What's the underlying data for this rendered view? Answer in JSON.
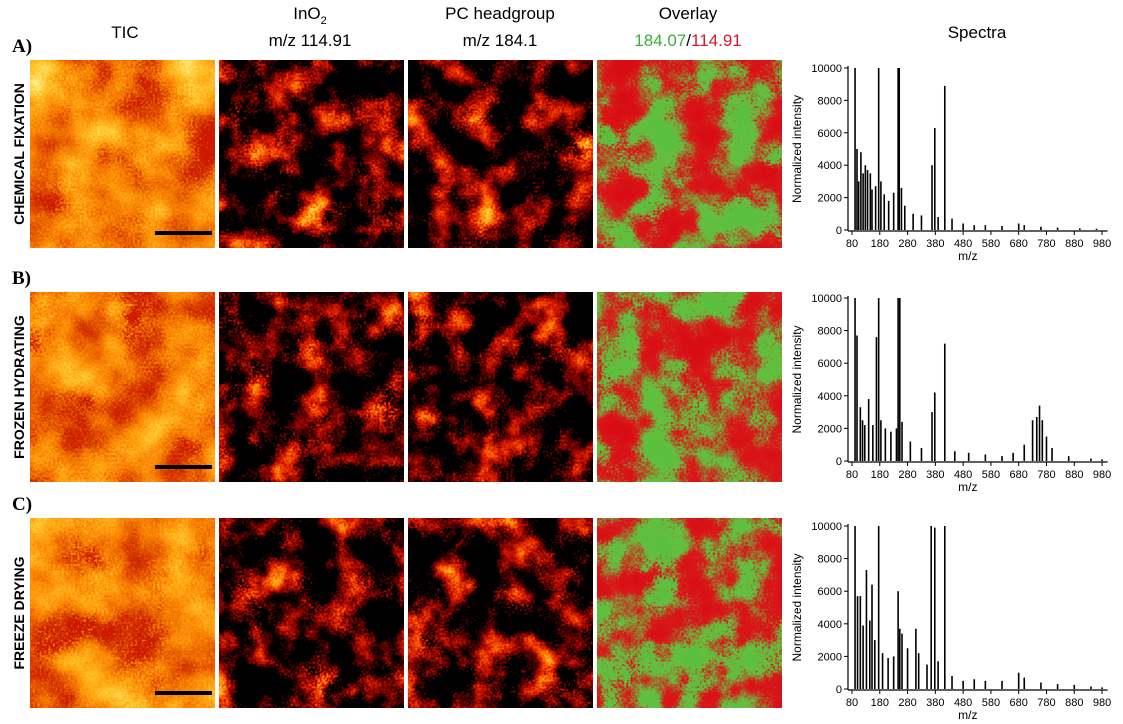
{
  "headers": {
    "tic": "TIC",
    "ino2": "InO",
    "ino2_sub": "2",
    "ino2_mz": "m/z 114.91",
    "pc": "PC headgroup",
    "pc_mz": "m/z 184.1",
    "overlay": "Overlay",
    "overlay_green": "184.07",
    "overlay_sep": "/",
    "overlay_red": "114.91",
    "spectra": "Spectra"
  },
  "rows": [
    {
      "letter": "A)",
      "label": "CHEMICAL FIXATION"
    },
    {
      "letter": "B)",
      "label": "FROZEN HYDRATING"
    },
    {
      "letter": "C)",
      "label": "FREEZE DRYING"
    }
  ],
  "chart_data": [
    {
      "type": "bar",
      "xlabel": "m/z",
      "ylabel": "Normalized intensity",
      "color": "#000000",
      "x": [
        91,
        98,
        104,
        112,
        120,
        128,
        136,
        146,
        152,
        165,
        176,
        184,
        196,
        212,
        230,
        246,
        250,
        258,
        270,
        300,
        330,
        368,
        378,
        390,
        414,
        440,
        480,
        520,
        560,
        620,
        680,
        700,
        760,
        820,
        900,
        960
      ],
      "values": [
        10000,
        5000,
        3000,
        4800,
        3500,
        4000,
        3700,
        3500,
        2500,
        2700,
        10000,
        3000,
        2200,
        1800,
        2300,
        10000,
        10000,
        2600,
        1500,
        1000,
        900,
        4000,
        6300,
        800,
        8900,
        700,
        400,
        300,
        300,
        250,
        400,
        300,
        200,
        150,
        100,
        80
      ],
      "xlim": [
        80,
        1000
      ],
      "xticks": [
        80,
        180,
        280,
        380,
        480,
        580,
        680,
        780,
        880,
        980
      ],
      "ylim": [
        0,
        10000
      ],
      "yticks": [
        0,
        2000,
        4000,
        6000,
        8000,
        10000
      ]
    },
    {
      "type": "bar",
      "xlabel": "m/z",
      "ylabel": "Normalized intensity",
      "color": "#000000",
      "x": [
        91,
        98,
        110,
        118,
        126,
        140,
        155,
        168,
        176,
        184,
        200,
        220,
        240,
        246,
        252,
        260,
        290,
        330,
        368,
        378,
        414,
        450,
        500,
        560,
        620,
        660,
        700,
        730,
        745,
        755,
        765,
        780,
        800,
        860,
        940,
        980
      ],
      "values": [
        10000,
        7700,
        3300,
        2500,
        2200,
        3800,
        2200,
        7600,
        10000,
        2500,
        2000,
        1800,
        2000,
        10000,
        10000,
        2400,
        1200,
        800,
        3000,
        4200,
        7200,
        600,
        500,
        400,
        300,
        500,
        1000,
        2500,
        2700,
        3400,
        2500,
        1500,
        800,
        300,
        150,
        100
      ],
      "xlim": [
        80,
        1000
      ],
      "xticks": [
        80,
        180,
        280,
        380,
        480,
        580,
        680,
        780,
        880,
        980
      ],
      "ylim": [
        0,
        10000
      ],
      "yticks": [
        0,
        2000,
        4000,
        6000,
        8000,
        10000
      ]
    },
    {
      "type": "bar",
      "xlabel": "m/z",
      "ylabel": "Normalized intensity",
      "color": "#000000",
      "x": [
        91,
        100,
        110,
        120,
        132,
        144,
        152,
        162,
        176,
        190,
        210,
        230,
        246,
        252,
        260,
        280,
        310,
        320,
        350,
        365,
        378,
        390,
        414,
        440,
        480,
        520,
        560,
        620,
        680,
        700,
        760,
        820,
        880,
        940,
        980
      ],
      "values": [
        10000,
        5700,
        5700,
        3900,
        7300,
        4200,
        6400,
        3000,
        10000,
        2200,
        1900,
        2000,
        6000,
        3700,
        3400,
        2500,
        3700,
        2200,
        1500,
        10000,
        9900,
        1700,
        10000,
        800,
        500,
        600,
        500,
        500,
        1000,
        700,
        400,
        300,
        250,
        150,
        100
      ],
      "xlim": [
        80,
        1000
      ],
      "xticks": [
        80,
        180,
        280,
        380,
        480,
        580,
        680,
        780,
        880,
        980
      ],
      "ylim": [
        0,
        10000
      ],
      "yticks": [
        0,
        2000,
        4000,
        6000,
        8000,
        10000
      ]
    }
  ]
}
